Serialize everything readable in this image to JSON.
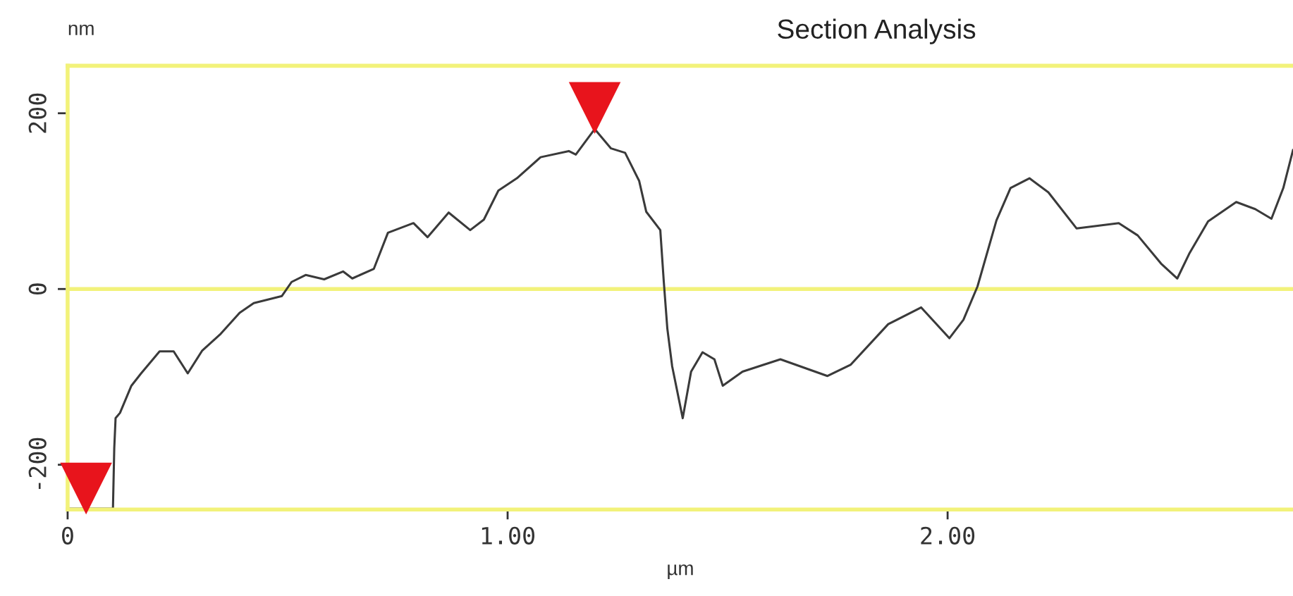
{
  "chart_data": {
    "type": "line",
    "title": "Section Analysis",
    "xlabel": "µm",
    "ylabel": "nm",
    "xlim": [
      0,
      2.785
    ],
    "ylim": [
      -251,
      254
    ],
    "xticks": [
      0,
      {
        "value": 1,
        "label": "1.00"
      },
      {
        "value": 2,
        "label": "2.00"
      }
    ],
    "yticks": [
      -200,
      0,
      200
    ],
    "grid": false,
    "line_style": "solid",
    "marker": "none",
    "ref_lines": [
      {
        "axis": "y",
        "value": 0,
        "label": null,
        "color": "#f2f27a"
      }
    ],
    "series": [
      {
        "color": "#3a3a3a",
        "x": [
          0,
          0.103,
          0.106,
          0.109,
          0.119,
          0.145,
          0.167,
          0.209,
          0.241,
          0.273,
          0.306,
          0.348,
          0.391,
          0.423,
          0.487,
          0.509,
          0.541,
          0.583,
          0.626,
          0.647,
          0.696,
          0.728,
          0.786,
          0.818,
          0.866,
          0.915,
          0.946,
          0.979,
          1.021,
          1.075,
          1.139,
          1.155,
          1.198,
          1.235,
          1.267,
          1.299,
          1.315,
          1.347,
          1.355,
          1.363,
          1.374,
          1.398,
          1.417,
          1.443,
          1.47,
          1.489,
          1.534,
          1.62,
          1.727,
          1.78,
          1.865,
          1.94,
          2.004,
          2.036,
          2.068,
          2.111,
          2.143,
          2.186,
          2.229,
          2.293,
          2.389,
          2.432,
          2.485,
          2.522,
          2.549,
          2.592,
          2.656,
          2.699,
          2.736,
          2.763,
          2.785
        ],
        "values": [
          -250,
          -250,
          -181,
          -147,
          -141,
          -110,
          -96,
          -71,
          -71,
          -96,
          -70,
          -51,
          -27,
          -16,
          -8,
          8,
          16,
          11,
          20,
          12,
          23,
          64,
          75,
          59,
          87,
          67,
          79,
          112,
          126,
          150,
          157,
          153,
          182,
          160,
          155,
          123,
          88,
          67,
          8,
          -45,
          -88,
          -147,
          -94,
          -72,
          -80,
          -110,
          -94,
          -80,
          -99,
          -86,
          -40,
          -21,
          -56,
          -35,
          3,
          78,
          115,
          126,
          110,
          69,
          75,
          61,
          29,
          12,
          40,
          77,
          99,
          91,
          80,
          115,
          158
        ]
      },
      {
        "type": "scatter",
        "color": "#e8141c",
        "marker": "triangle",
        "x": [
          0.042,
          1.198
        ],
        "values": [
          -227,
          206
        ]
      }
    ]
  }
}
